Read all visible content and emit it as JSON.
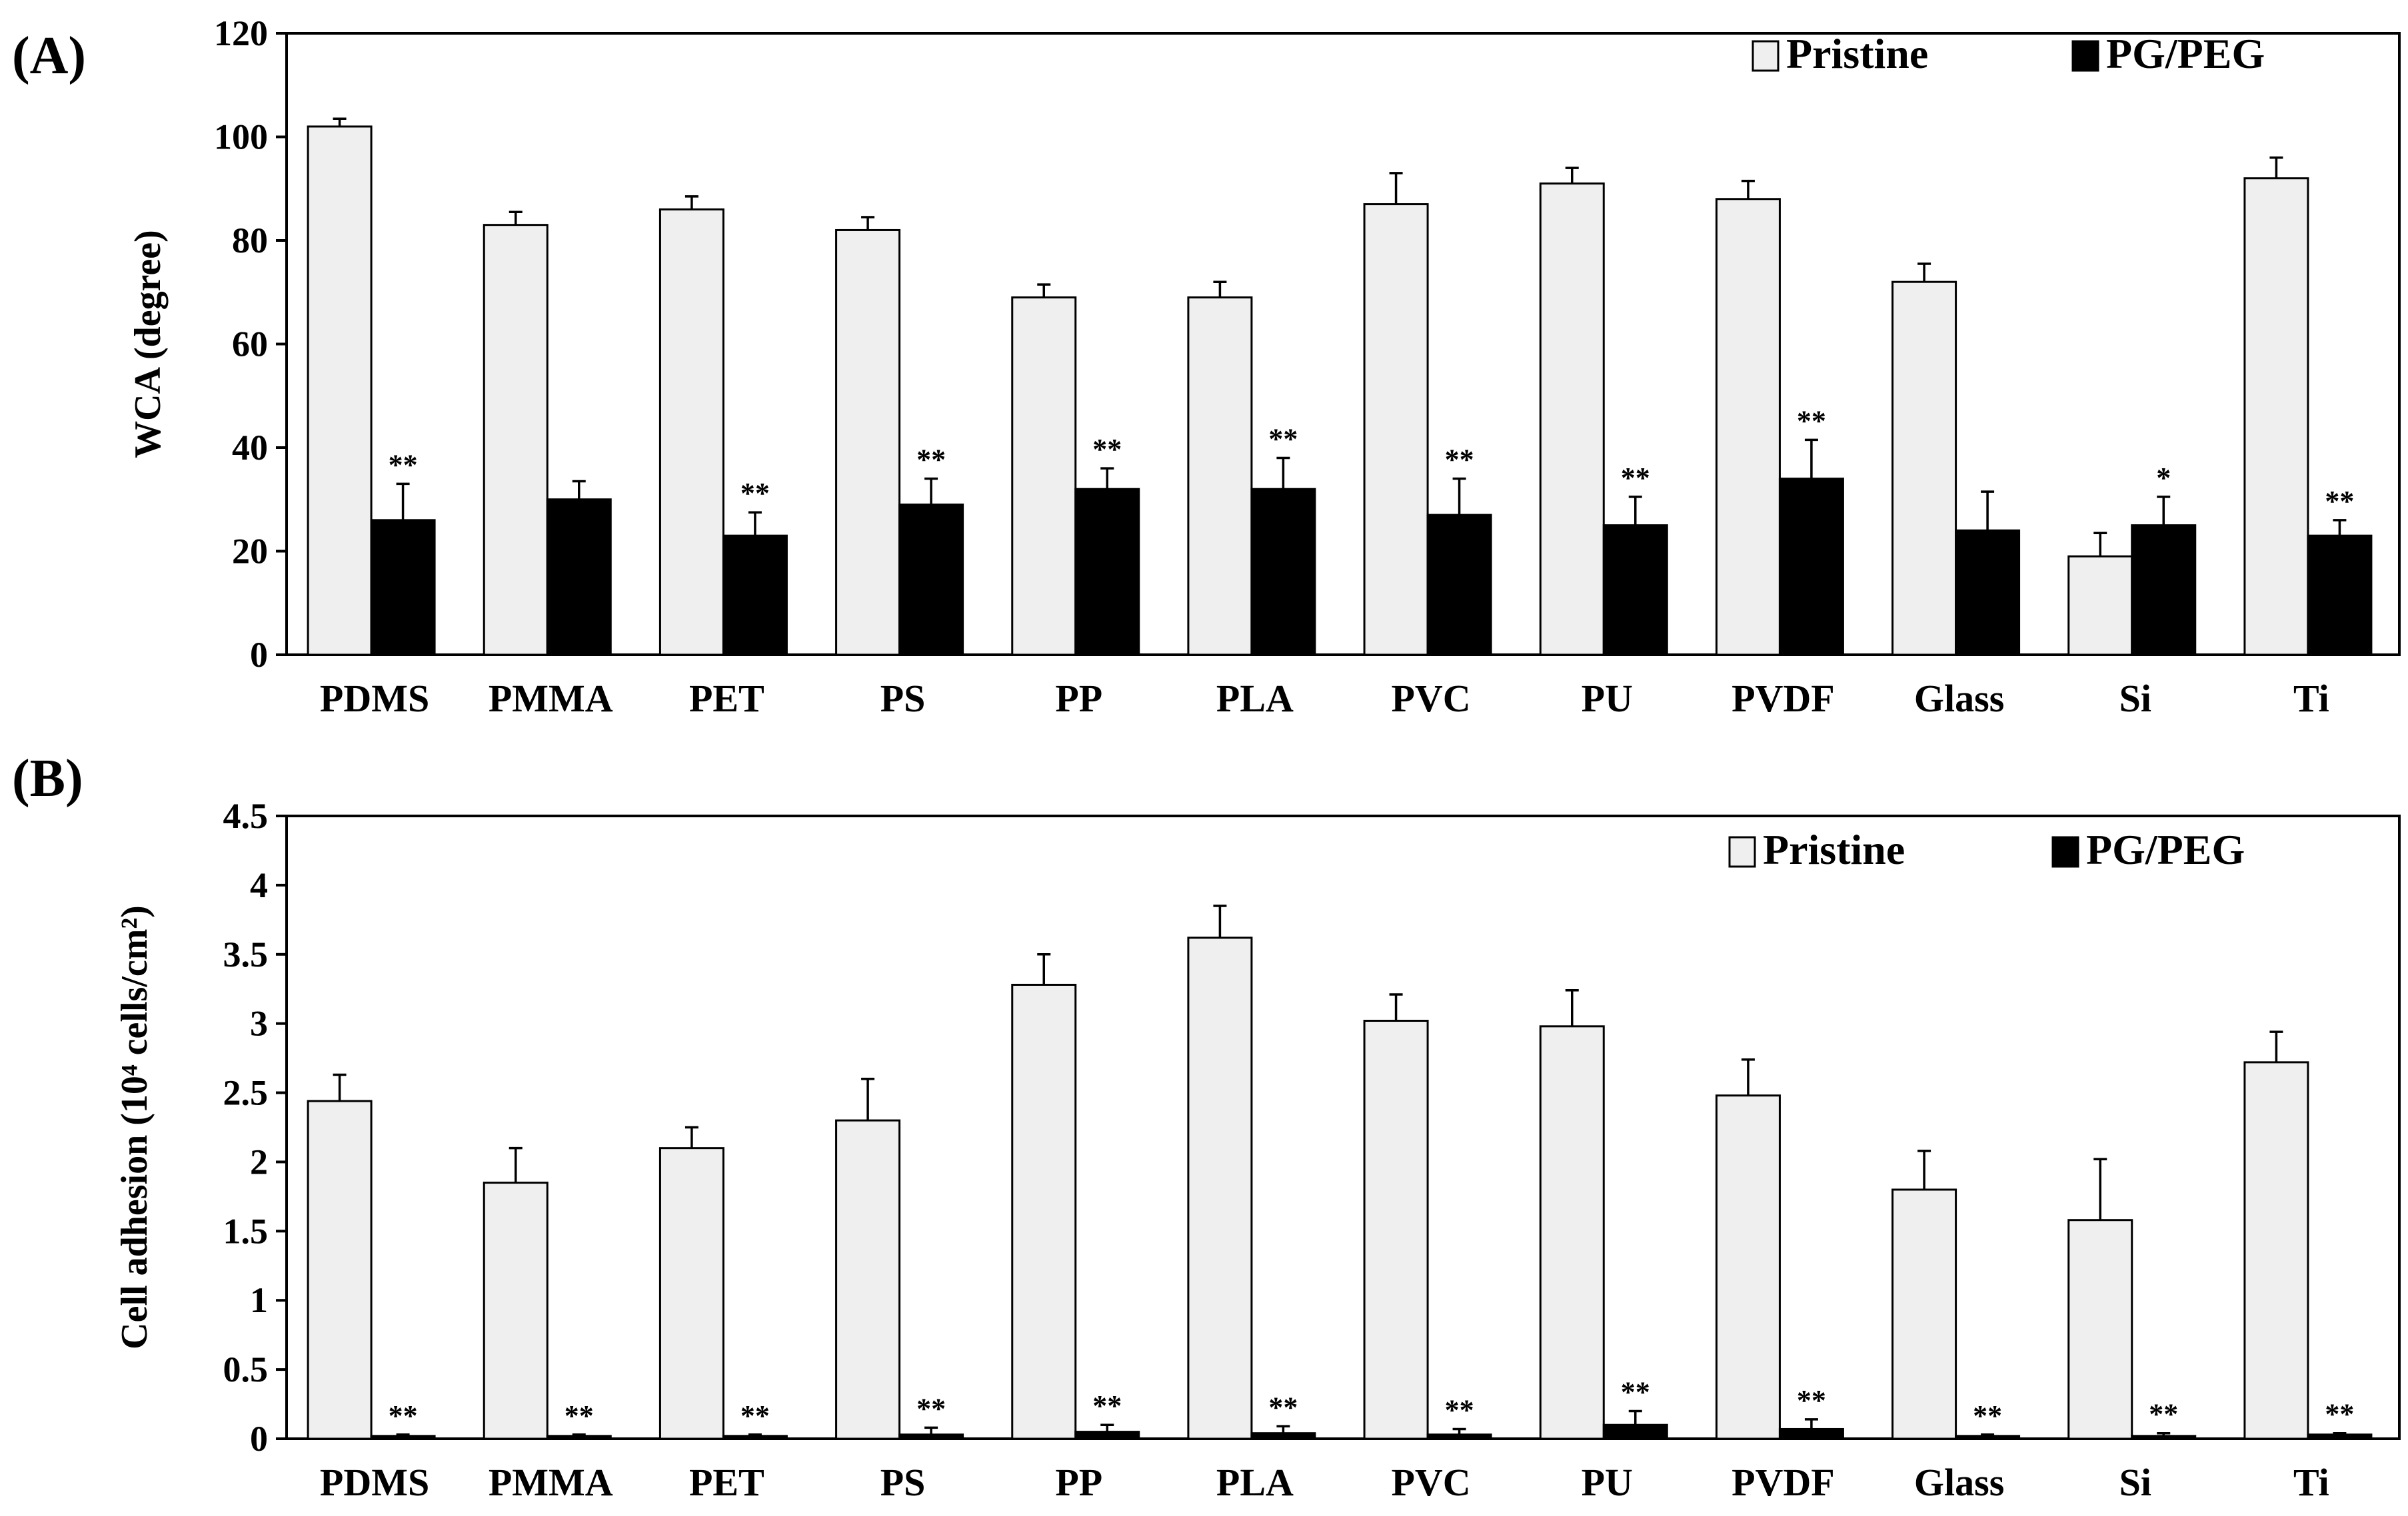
{
  "chart_data": [
    {
      "type": "bar",
      "panel_label": "(A)",
      "title": "",
      "xlabel": "",
      "ylabel": "WCA (degree)",
      "ylim": [
        0,
        120
      ],
      "yticks": [
        "0",
        "20",
        "40",
        "60",
        "80",
        "100",
        "120"
      ],
      "legend_position": "top-right",
      "categories": [
        "PDMS",
        "PMMA",
        "PET",
        "PS",
        "PP",
        "PLA",
        "PVC",
        "PU",
        "PVDF",
        "Glass",
        "Si",
        "Ti"
      ],
      "series": [
        {
          "name": "Pristine",
          "color": "#efefef",
          "values": [
            102,
            83,
            86,
            82,
            69,
            69,
            87,
            91,
            88,
            72,
            19,
            92
          ],
          "errors": [
            1.5,
            2.5,
            2.5,
            2.5,
            2.5,
            3,
            6,
            3,
            3.5,
            3.5,
            4.5,
            4
          ]
        },
        {
          "name": "PG/PEG",
          "color": "#000000",
          "values": [
            26,
            30,
            23,
            29,
            32,
            32,
            27,
            25,
            34,
            24,
            25,
            23
          ],
          "errors": [
            7,
            3.5,
            4.5,
            5,
            4,
            6,
            7,
            5.5,
            7.5,
            7.5,
            5.5,
            3
          ]
        }
      ],
      "significance": [
        "**",
        "",
        "**",
        "**",
        "**",
        "**",
        "**",
        "**",
        "**",
        "",
        "*",
        "**"
      ]
    },
    {
      "type": "bar",
      "panel_label": "(B)",
      "title": "",
      "xlabel": "",
      "ylabel": "Cell adhesion (10⁴ cells/cm²)",
      "ylim": [
        0,
        4.5
      ],
      "yticks": [
        "0",
        "0.5",
        "1",
        "1.5",
        "2",
        "2.5",
        "3",
        "3.5",
        "4",
        "4.5"
      ],
      "legend_position": "top-right",
      "categories": [
        "PDMS",
        "PMMA",
        "PET",
        "PS",
        "PP",
        "PLA",
        "PVC",
        "PU",
        "PVDF",
        "Glass",
        "Si",
        "Ti"
      ],
      "series": [
        {
          "name": "Pristine",
          "color": "#efefef",
          "values": [
            2.44,
            1.85,
            2.1,
            2.3,
            3.28,
            3.62,
            3.02,
            2.98,
            2.48,
            1.8,
            1.58,
            2.72
          ],
          "errors": [
            0.19,
            0.25,
            0.15,
            0.3,
            0.22,
            0.23,
            0.19,
            0.26,
            0.26,
            0.28,
            0.44,
            0.22
          ]
        },
        {
          "name": "PG/PEG",
          "color": "#000000",
          "values": [
            0.02,
            0.02,
            0.02,
            0.03,
            0.05,
            0.04,
            0.03,
            0.1,
            0.07,
            0.02,
            0.02,
            0.03
          ],
          "errors": [
            0.01,
            0.01,
            0.01,
            0.05,
            0.05,
            0.05,
            0.04,
            0.1,
            0.07,
            0.01,
            0.02,
            0.01
          ]
        }
      ],
      "significance": [
        "**",
        "**",
        "**",
        "**",
        "**",
        "**",
        "**",
        "**",
        "**",
        "**",
        "**",
        "**"
      ]
    }
  ]
}
